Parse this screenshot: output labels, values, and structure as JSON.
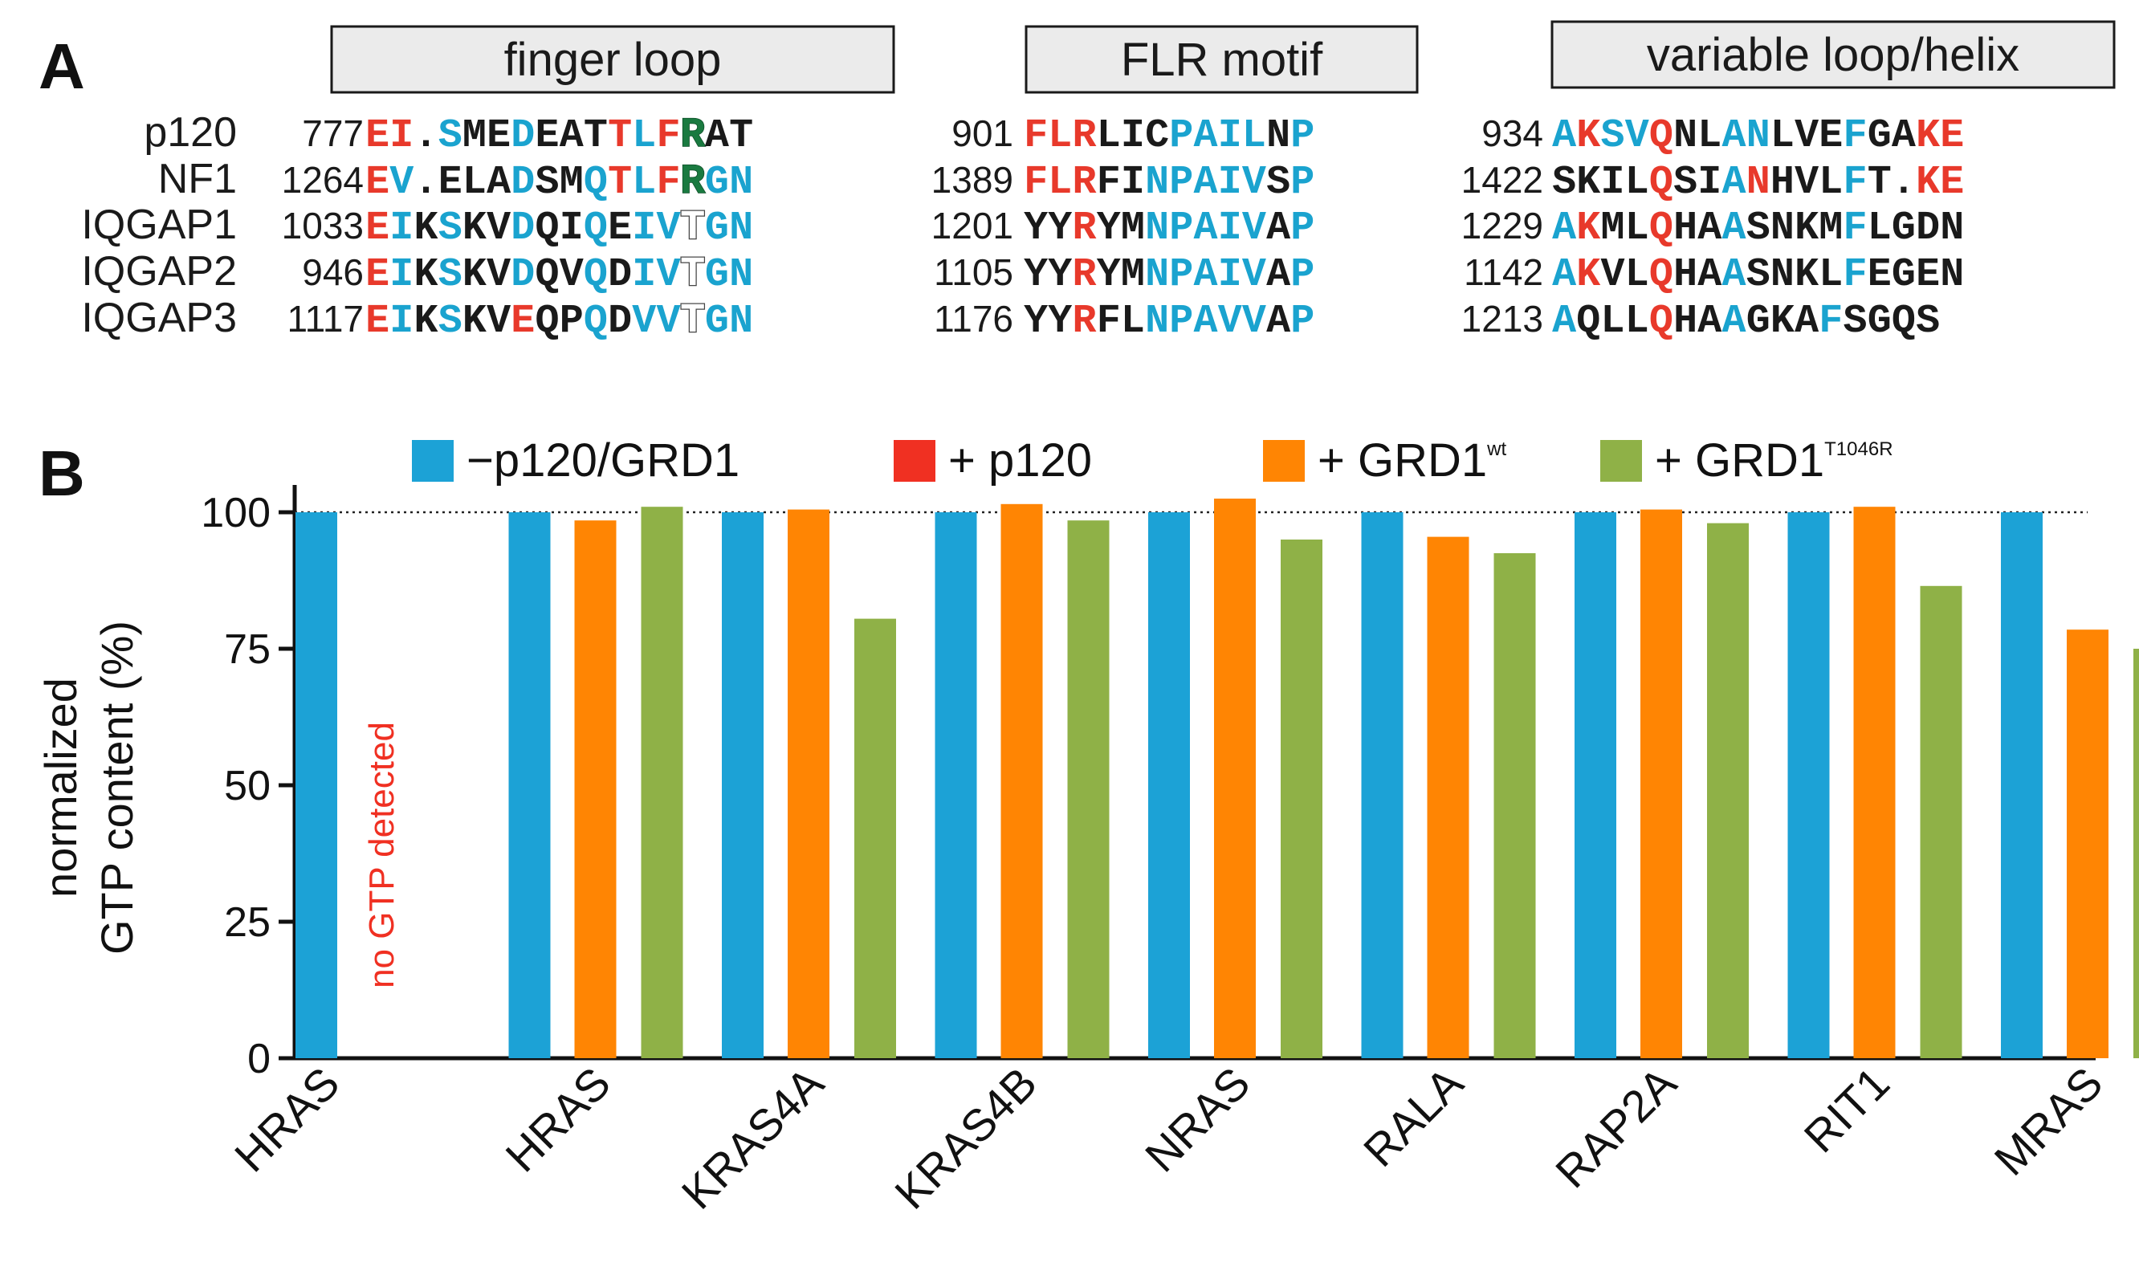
{
  "figure": {
    "panel_a_label": "A",
    "panel_b_label": "B",
    "colors": {
      "red": "#e8392b",
      "cyan": "#1aa3cf",
      "black": "#1a1a1a",
      "green": "#1a7a40",
      "gray": "#8a8a8a",
      "box_fill": "#ebebeb",
      "bar_minus": "#1ca2d6",
      "bar_p120": "#f03022",
      "bar_wt": "#ff8503",
      "bar_mut": "#8fb147"
    }
  },
  "alignment": {
    "rows": [
      "p120",
      "NF1",
      "IQGAP1",
      "IQGAP2",
      "IQGAP3"
    ],
    "blocks": [
      {
        "title": "finger loop",
        "starts": [
          "777",
          "1264",
          "1033",
          "946",
          "1117"
        ],
        "seqs": [
          "EI.SMEDEATTLFRAT",
          "EV.ELADSMQTLFRGN",
          "EIKSKVDQIQEIVTGN",
          "EIKSKVDQVQDIVTGN",
          "EIKSKVEQPQDVVTGN"
        ],
        "colors": [
          "RRkCkkCkkkRCRGkk",
          "RCkkkkCkkCRCRGCC",
          "RCkCkkCkkCkCCHCC",
          "RCkCkkCkkCkCCHCC",
          "RCkCkkRkkCkCCHCC"
        ]
      },
      {
        "title": "FLR motif",
        "starts": [
          "901",
          "1389",
          "1201",
          "1105",
          "1176"
        ],
        "seqs": [
          "FLRLICPAILNP",
          "FLRFINPAIVSP",
          "YYRYMNPAIVAP",
          "YYRYMNPAIVAP",
          "YYRFLNPAVVAP"
        ],
        "colors": [
          "RRRkkkCCCCkC",
          "RRRkkCCCCCkC",
          "kkRkkCCCCCkC",
          "kkRkkCCCCCkC",
          "kkRkkCCCCCkC"
        ]
      },
      {
        "title": "variable loop/helix",
        "starts": [
          "934",
          "1422",
          "1229",
          "1142",
          "1213"
        ],
        "seqs": [
          "AKSVQNLANLVEFGAKE",
          "SKILQSIANHVLFT.KE",
          "AKMLQHAASNKMFLGDN",
          "AKVLQHAASNKLFEGEN",
          "AQLLQHAAGKAFSGQS"
        ],
        "colors": [
          "CRCCRkkCCkkkCkkRR",
          "kkkkRkkCRkkkCkkRR",
          "CRkkRkkCkkkkCkkkk",
          "CRkkRkkCkkkkCkkkk",
          "CkkkRkkCkkkCkkkk"
        ]
      }
    ]
  },
  "chart_data": {
    "type": "bar",
    "title": "",
    "xlabel": "",
    "ylabel": "normalized\nGTP content (%)",
    "ylabel_lines": [
      "normalized",
      "GTP content (%)"
    ],
    "ylim": [
      0,
      105
    ],
    "yticks": [
      0,
      25,
      50,
      75,
      100
    ],
    "ytick_labels": [
      "0",
      "25",
      "50",
      "75",
      "100"
    ],
    "reference_line": 100,
    "grid": false,
    "legend_position": "top",
    "categories": [
      "HRAS",
      "HRAS",
      "KRAS4A",
      "KRAS4B",
      "NRAS",
      "RALA",
      "RAP2A",
      "RIT1",
      "MRAS"
    ],
    "series": [
      {
        "name": "−p120/GRD1",
        "color": "#1ca2d6",
        "values": [
          100,
          100,
          100,
          100,
          100,
          100,
          100,
          100,
          100
        ]
      },
      {
        "name": "+ p120",
        "color": "#f03022",
        "values": [
          0,
          null,
          null,
          null,
          null,
          null,
          null,
          null,
          null
        ]
      },
      {
        "name": "+ GRD1",
        "superscript": "wt",
        "color": "#ff8503",
        "values": [
          null,
          98.5,
          100.5,
          101.5,
          102.5,
          95.5,
          100.5,
          101,
          78.5
        ]
      },
      {
        "name": "+ GRD1",
        "superscript": "T1046R",
        "color": "#8fb147",
        "values": [
          null,
          101,
          80.5,
          98.5,
          95,
          92.5,
          98,
          86.5,
          75
        ]
      }
    ],
    "annotations": [
      {
        "text": "no GTP detected",
        "category_index": 0,
        "series": "+ p120",
        "color": "#f03022"
      }
    ]
  }
}
